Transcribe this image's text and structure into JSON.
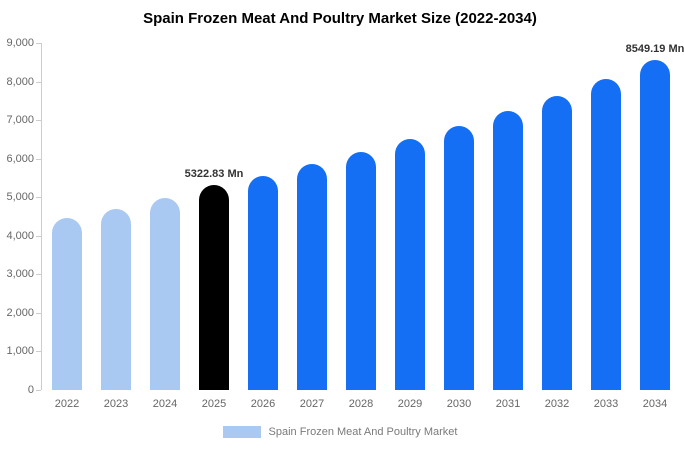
{
  "title": "Spain Frozen Meat And Poultry Market Size (2022-2034)",
  "legend": {
    "label": "Spain Frozen Meat And Poultry Market",
    "swatch_color": "#a9c9f2"
  },
  "colors": {
    "historical_bar": "#a9c9f2",
    "base_year_bar": "#000000",
    "forecast_bar": "#146ff5",
    "axis": "#cccccc",
    "tick_text": "#666666"
  },
  "chart_data": {
    "type": "bar",
    "title": "Spain Frozen Meat And Poultry Market Size (2022-2034)",
    "xlabel": "",
    "ylabel": "",
    "ylim": [
      0,
      9000
    ],
    "grid": false,
    "legend_position": "bottom",
    "categories": [
      "2022",
      "2023",
      "2024",
      "2025",
      "2026",
      "2027",
      "2028",
      "2029",
      "2030",
      "2031",
      "2032",
      "2033",
      "2034"
    ],
    "values": [
      4450,
      4700,
      4970,
      5322.83,
      5550,
      5870,
      6160,
      6500,
      6850,
      7230,
      7620,
      8060,
      8549.19
    ],
    "bar_colors": [
      "#a9c9f2",
      "#a9c9f2",
      "#a9c9f2",
      "#000000",
      "#146ff5",
      "#146ff5",
      "#146ff5",
      "#146ff5",
      "#146ff5",
      "#146ff5",
      "#146ff5",
      "#146ff5",
      "#146ff5"
    ],
    "ytick_labels": [
      "0",
      "1,000",
      "2,000",
      "3,000",
      "4,000",
      "5,000",
      "6,000",
      "7,000",
      "8,000",
      "9,000"
    ],
    "annotations": [
      {
        "category": "2025",
        "text": "5322.83 Mn"
      },
      {
        "category": "2034",
        "text": "8549.19 Mn"
      }
    ]
  }
}
